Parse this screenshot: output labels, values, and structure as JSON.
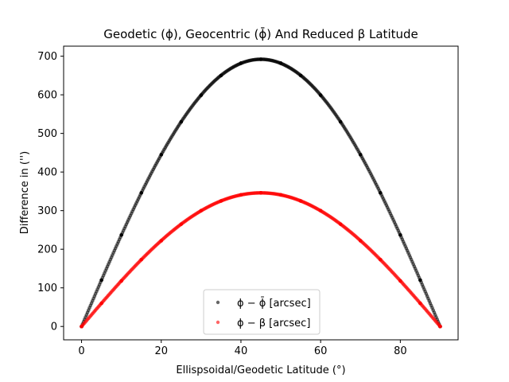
{
  "chart_data": {
    "type": "scatter",
    "title": "Geodetic (ϕ), Geocentric (ϕ̄) And Reduced β Latitude",
    "xlabel": "Ellispsoidal/Geodetic Latitude (°)",
    "ylabel": "Difference in ('')",
    "xlim": [
      -4.5,
      94.5
    ],
    "ylim": [
      -34.6,
      726
    ],
    "xticks": [
      0,
      20,
      40,
      60,
      80
    ],
    "yticks": [
      0,
      100,
      200,
      300,
      400,
      500,
      600,
      700
    ],
    "grid": false,
    "legend_position": "lower center",
    "series": [
      {
        "name": "ϕ − ϕ̄ [arcsec]",
        "color": "#000000",
        "x": [
          0,
          5,
          10,
          15,
          20,
          25,
          30,
          35,
          40,
          45,
          50,
          55,
          60,
          65,
          70,
          75,
          80,
          85,
          90
        ],
        "y": [
          0,
          120,
          237,
          346,
          445,
          530,
          599,
          650,
          682,
          692,
          682,
          650,
          599,
          530,
          445,
          346,
          237,
          120,
          0
        ]
      },
      {
        "name": "ϕ − β [arcsec]",
        "color": "#ff0000",
        "x": [
          0,
          5,
          10,
          15,
          20,
          25,
          30,
          35,
          40,
          45,
          50,
          55,
          60,
          65,
          70,
          75,
          80,
          85,
          90
        ],
        "y": [
          0,
          60,
          118,
          173,
          222,
          265,
          300,
          325,
          341,
          346,
          341,
          325,
          300,
          265,
          222,
          173,
          118,
          60,
          0
        ]
      }
    ]
  }
}
